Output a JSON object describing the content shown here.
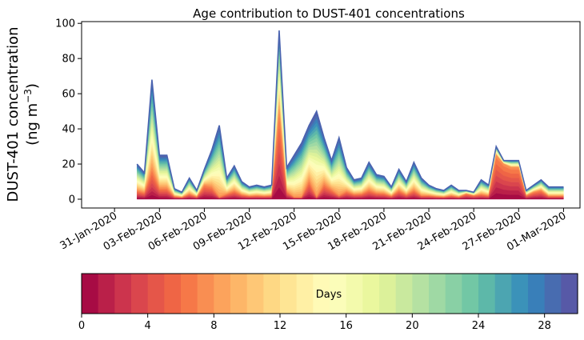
{
  "chart_data": {
    "type": "area",
    "title": "Age contribution to DUST-401 concentrations",
    "ylabel_line1": "DUST-401 concentration",
    "ylabel_unit_prefix": "(ng m",
    "ylabel_unit_exp": "−3",
    "ylabel_unit_suffix": ")",
    "xlabel": "",
    "ylim": [
      -5,
      101
    ],
    "xlim": [
      -3.7,
      29.6
    ],
    "yticks": [
      0,
      20,
      40,
      60,
      80,
      100
    ],
    "ytick_labels": [
      "0",
      "20",
      "40",
      "60",
      "80",
      "100"
    ],
    "xticks": [
      -1.5,
      1.5,
      4.5,
      7.5,
      10.5,
      13.5,
      16.5,
      19.5,
      22.5,
      25.5,
      28.5
    ],
    "xtick_labels": [
      "31-Jan-2020",
      "03-Feb-2020",
      "06-Feb-2020",
      "09-Feb-2020",
      "12-Feb-2020",
      "15-Feb-2020",
      "18-Feb-2020",
      "21-Feb-2020",
      "24-Feb-2020",
      "27-Feb-2020",
      "01-Mar-2020"
    ],
    "x": [
      0,
      0.5,
      1,
      1.5,
      2,
      2.5,
      3,
      3.5,
      4,
      4.5,
      5,
      5.5,
      6,
      6.5,
      7,
      7.5,
      8,
      8.5,
      9,
      9.5,
      10,
      10.5,
      11,
      11.5,
      12,
      12.5,
      13,
      13.5,
      14,
      14.5,
      15,
      15.5,
      16,
      16.5,
      17,
      17.5,
      18,
      18.5,
      19,
      19.5,
      20,
      20.5,
      21,
      21.5,
      22,
      22.5,
      23,
      23.5,
      24,
      24.5,
      25,
      25.5,
      26,
      26.5,
      27,
      27.5,
      28,
      28.5
    ],
    "total": [
      20,
      15,
      68,
      25,
      25,
      6,
      4,
      12,
      5,
      17,
      28,
      42,
      12,
      19,
      10,
      7,
      8,
      7,
      8,
      96,
      18,
      25,
      32,
      42,
      50,
      35,
      22,
      35,
      18,
      11,
      12,
      21,
      14,
      13,
      7,
      17,
      10,
      21,
      12,
      8,
      6,
      5,
      8,
      5,
      5,
      4,
      11,
      8,
      30,
      22,
      22,
      22,
      5,
      8,
      11,
      7,
      7,
      7
    ],
    "short_age": [
      0,
      0,
      0,
      0,
      0,
      0,
      1,
      3,
      0,
      8,
      0,
      1,
      0,
      0,
      0,
      0,
      0,
      0,
      0,
      50,
      0,
      1,
      1,
      0,
      1,
      0,
      0,
      2,
      0,
      0,
      0,
      0,
      0,
      0,
      0,
      5,
      0,
      0,
      2,
      0,
      0,
      0,
      0,
      0,
      3,
      2,
      0,
      0,
      25,
      20,
      18,
      18,
      2,
      4,
      5,
      0,
      0,
      0
    ],
    "colorbar": {
      "label": "Days",
      "min": 0,
      "max": 30,
      "ticks": [
        0,
        4,
        8,
        12,
        16,
        20,
        24,
        28
      ],
      "tick_labels": [
        "0",
        "4",
        "8",
        "12",
        "16",
        "20",
        "24",
        "28"
      ],
      "n_bins": 30,
      "colormap": [
        "#9e0142",
        "#d53e4f",
        "#f46d43",
        "#fdae61",
        "#fee08b",
        "#ffffbf",
        "#e6f598",
        "#abdda4",
        "#66c2a5",
        "#3288bd",
        "#5e4fa2"
      ]
    },
    "top_edge_color": "#4a63b0"
  }
}
